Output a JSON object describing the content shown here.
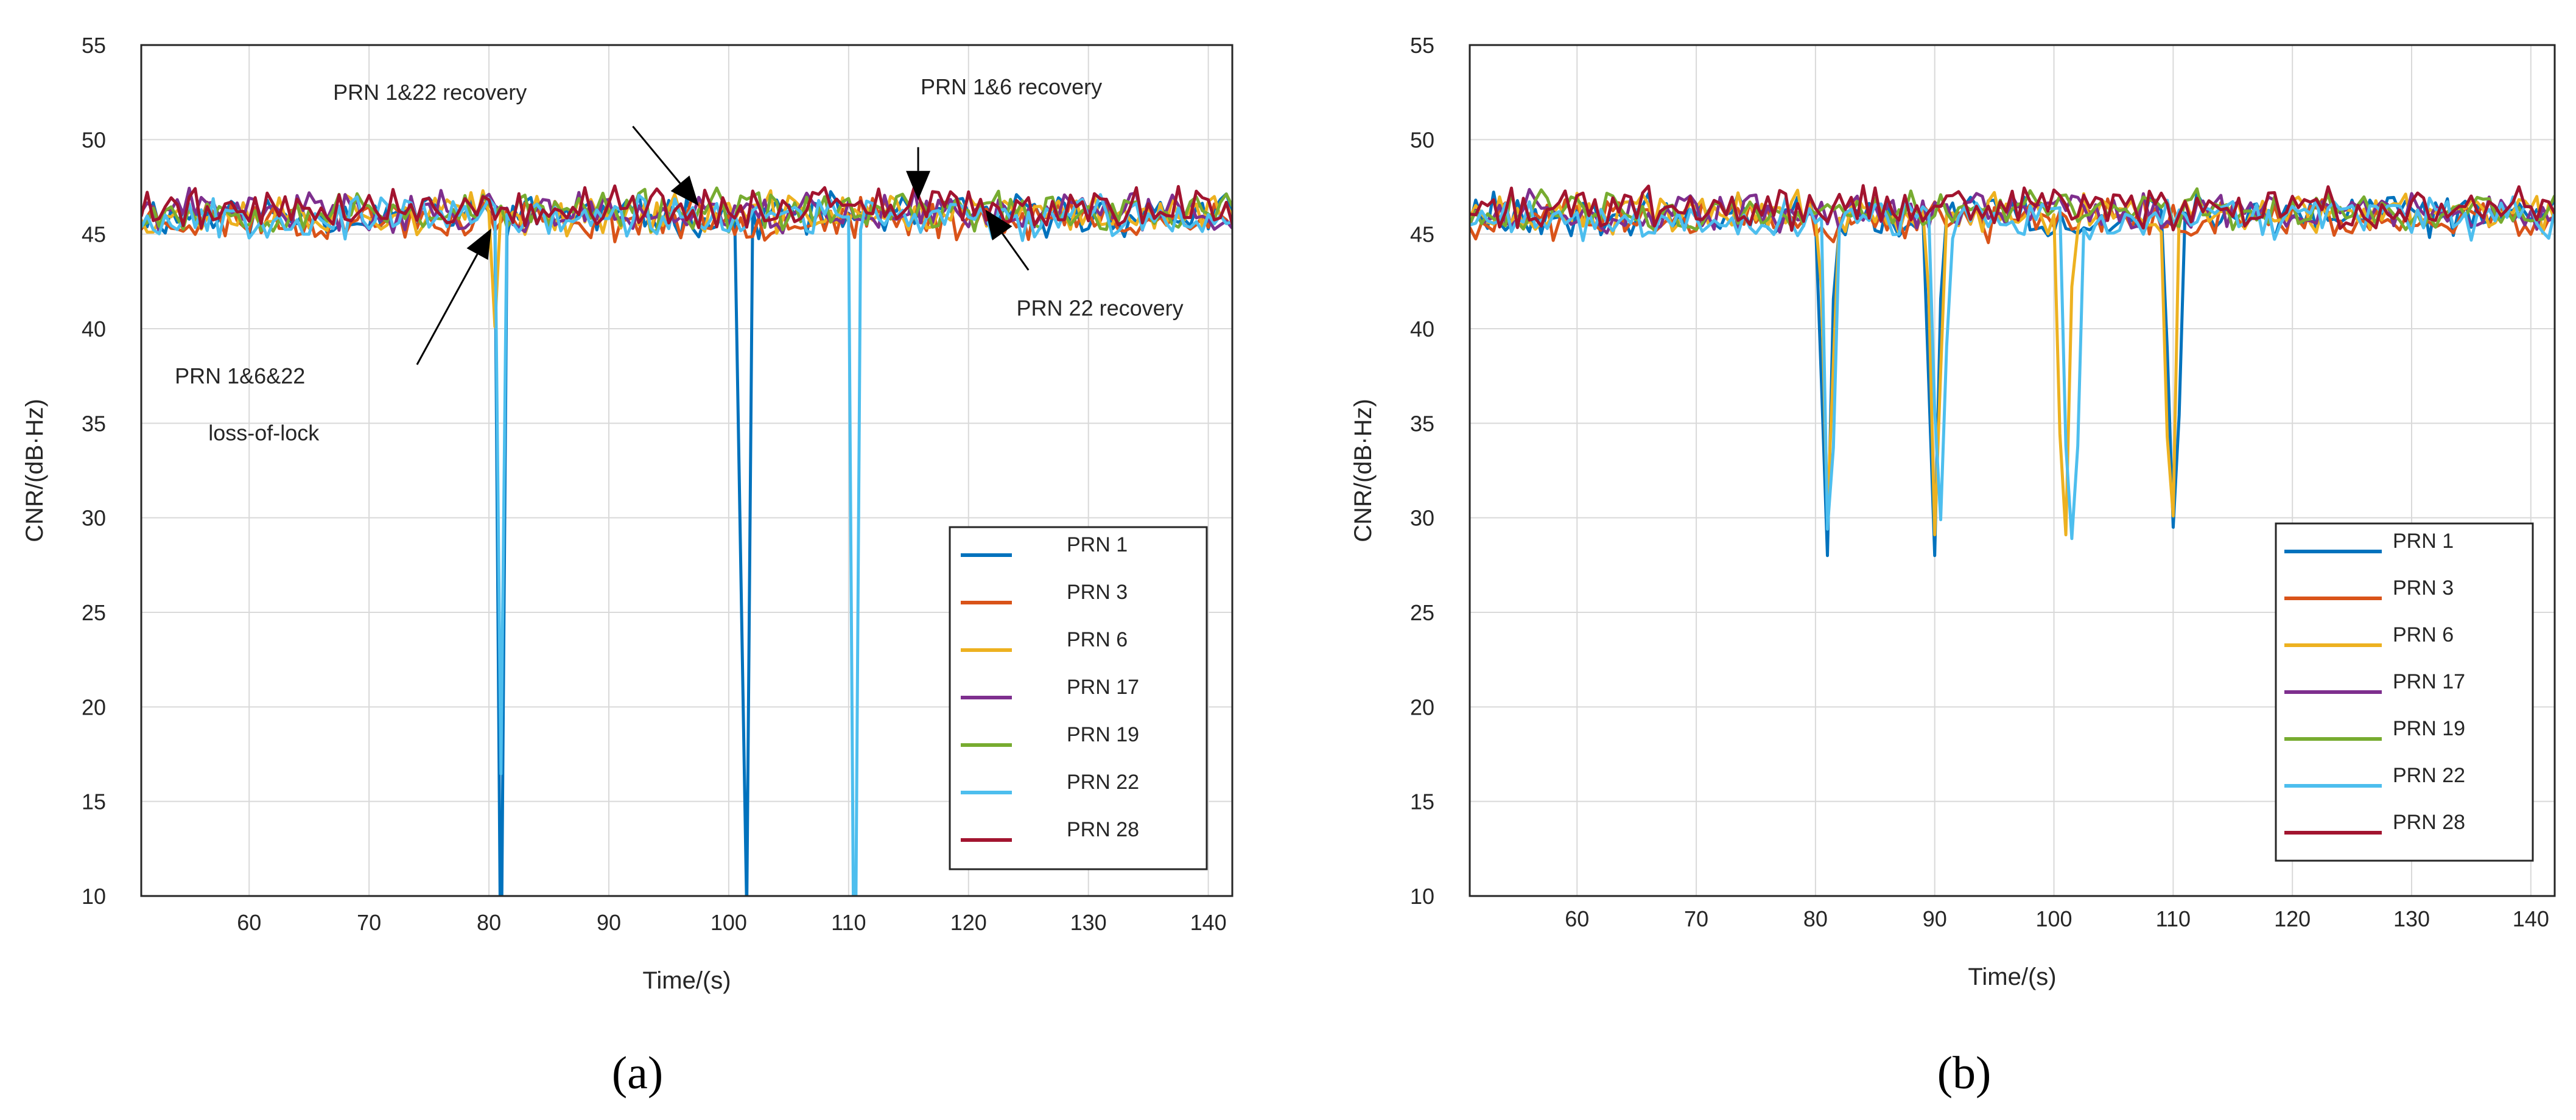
{
  "chart_data": [
    {
      "type": "line",
      "panel_label": "(a)",
      "xlabel": "Time/(s)",
      "ylabel": "CNR/(dB·Hz)",
      "xlim": [
        51,
        142
      ],
      "ylim": [
        10,
        55
      ],
      "xticks": [
        60,
        70,
        80,
        90,
        100,
        110,
        120,
        130,
        140
      ],
      "yticks": [
        10,
        15,
        20,
        25,
        30,
        35,
        40,
        45,
        50,
        55
      ],
      "grid": true,
      "legend_position": "bottom-right",
      "series": [
        {
          "name": "PRN 1",
          "color": "#0072BD",
          "baseline": 46.0,
          "seed": 11,
          "events": [
            {
              "start": 80.5,
              "end": 81.2,
              "down": 46.0
            },
            {
              "start": 100.9,
              "end": 101.7,
              "down": 46.0
            }
          ]
        },
        {
          "name": "PRN 3",
          "color": "#D95319",
          "baseline": 45.8,
          "seed": 23,
          "events": []
        },
        {
          "name": "PRN 6",
          "color": "#EDB120",
          "baseline": 46.1,
          "seed": 37,
          "events": [
            {
              "start": 80.0,
              "end": 80.8,
              "down": 6.0
            }
          ]
        },
        {
          "name": "PRN 17",
          "color": "#7E2F8E",
          "baseline": 46.2,
          "seed": 41,
          "events": []
        },
        {
          "name": "PRN 19",
          "color": "#77AC30",
          "baseline": 46.2,
          "seed": 53,
          "events": []
        },
        {
          "name": "PRN 22",
          "color": "#4DBEEE",
          "baseline": 45.9,
          "seed": 67,
          "events": [
            {
              "start": 80.9,
              "end": 81.4,
              "down": 46.0
            },
            {
              "start": 110.1,
              "end": 110.8,
              "down": 46.0
            }
          ]
        },
        {
          "name": "PRN 28",
          "color": "#A2142F",
          "baseline": 46.4,
          "seed": 79,
          "events": []
        }
      ],
      "annotations": [
        {
          "id": "ann-prn-1-22-recovery",
          "text": "PRN 1&22 recovery",
          "x": 67,
          "y": 52.1
        },
        {
          "id": "ann-prn-1-6-recovery",
          "text": "PRN 1&6 recovery",
          "x": 116,
          "y": 52.4
        },
        {
          "id": "ann-prn-22-recovery",
          "text": "PRN 22 recovery",
          "x": 124,
          "y": 40.7
        },
        {
          "id": "ann-loss-of-lock-1",
          "text": "PRN 1&6&22",
          "x": 53.8,
          "y": 37.1
        },
        {
          "id": "ann-loss-of-lock-2",
          "text": "loss-of-lock",
          "x": 56.6,
          "y": 34.1
        }
      ],
      "arrows": [
        {
          "id": "arrow-1-22-recovery",
          "from": [
            92.0,
            50.7
          ],
          "to": [
            97.5,
            46.5
          ]
        },
        {
          "id": "arrow-1-6-recovery",
          "from": [
            115.8,
            49.6
          ],
          "to": [
            115.8,
            46.8
          ]
        },
        {
          "id": "arrow-22-recovery",
          "from": [
            125.0,
            43.1
          ],
          "to": [
            121.4,
            46.3
          ]
        },
        {
          "id": "arrow-loss-of-lock",
          "from": [
            74.0,
            38.1
          ],
          "to": [
            80.2,
            45.3
          ]
        }
      ]
    },
    {
      "type": "line",
      "panel_label": "(b)",
      "xlabel": "Time/(s)",
      "ylabel": "CNR/(dB·Hz)",
      "xlim": [
        51,
        142
      ],
      "ylim": [
        10,
        55
      ],
      "xticks": [
        60,
        70,
        80,
        90,
        100,
        110,
        120,
        130,
        140
      ],
      "yticks": [
        10,
        15,
        20,
        25,
        30,
        35,
        40,
        45,
        50,
        55
      ],
      "grid": true,
      "legend_position": "bottom-right",
      "series": [
        {
          "name": "PRN 1",
          "color": "#0072BD",
          "baseline": 46.0,
          "seed": 111,
          "events": [
            {
              "start": 80.3,
              "end": 81.6,
              "down": 18.0
            },
            {
              "start": 89.3,
              "end": 90.6,
              "down": 18.0
            },
            {
              "start": 109.3,
              "end": 110.8,
              "down": 16.5
            }
          ]
        },
        {
          "name": "PRN 3",
          "color": "#D95319",
          "baseline": 45.8,
          "seed": 123,
          "events": []
        },
        {
          "name": "PRN 6",
          "color": "#EDB120",
          "baseline": 46.1,
          "seed": 137,
          "events": [
            {
              "start": 80.4,
              "end": 81.7,
              "down": 16.0
            },
            {
              "start": 89.4,
              "end": 90.7,
              "down": 17.0
            },
            {
              "start": 100.2,
              "end": 101.6,
              "down": 17.0
            },
            {
              "start": 109.2,
              "end": 110.5,
              "down": 16.0
            }
          ]
        },
        {
          "name": "PRN 17",
          "color": "#7E2F8E",
          "baseline": 46.2,
          "seed": 141,
          "events": []
        },
        {
          "name": "PRN 19",
          "color": "#77AC30",
          "baseline": 46.2,
          "seed": 153,
          "events": []
        },
        {
          "name": "PRN 22",
          "color": "#4DBEEE",
          "baseline": 45.9,
          "seed": 167,
          "events": [
            {
              "start": 80.5,
              "end": 81.8,
              "down": 16.5
            },
            {
              "start": 89.7,
              "end": 91.2,
              "down": 16.0
            },
            {
              "start": 100.6,
              "end": 102.4,
              "down": 17.0
            }
          ]
        },
        {
          "name": "PRN 28",
          "color": "#A2142F",
          "baseline": 46.4,
          "seed": 179,
          "events": []
        }
      ],
      "annotations": [],
      "arrows": []
    }
  ]
}
